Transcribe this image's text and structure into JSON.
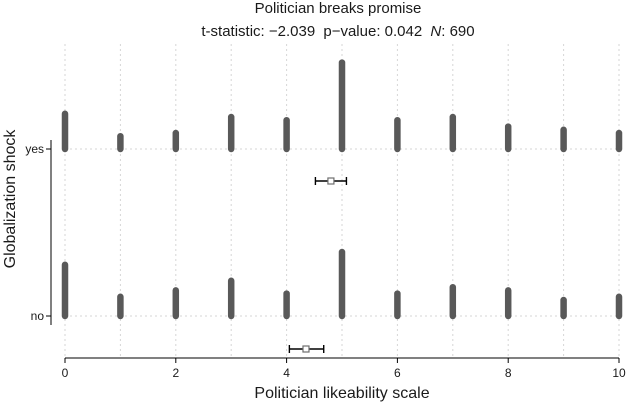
{
  "chart_data": {
    "type": "bar",
    "title": "Politician breaks promise",
    "subtitle_parts": {
      "t_label": "t-statistic:",
      "t_value": "−2.039",
      "p_label": "p−value:",
      "p_value": "0.042",
      "n_label": "N",
      "n_value": "690"
    },
    "xlabel": "Politician likeability scale",
    "ylabel": "Globalization shock",
    "xlim": [
      0,
      10
    ],
    "xticks": [
      "0",
      "2",
      "4",
      "6",
      "8",
      "10"
    ],
    "categories": [
      "yes",
      "no"
    ],
    "x": [
      0,
      1,
      2,
      3,
      4,
      5,
      6,
      7,
      8,
      9,
      10
    ],
    "series": [
      {
        "name": "yes",
        "values": [
          0.11,
          0.04,
          0.05,
          0.1,
          0.09,
          0.27,
          0.09,
          0.1,
          0.07,
          0.06,
          0.05
        ],
        "mean": 4.8,
        "ci": [
          4.52,
          5.08
        ]
      },
      {
        "name": "no",
        "values": [
          0.16,
          0.06,
          0.08,
          0.11,
          0.07,
          0.2,
          0.07,
          0.09,
          0.08,
          0.05,
          0.06
        ],
        "mean": 4.35,
        "ci": [
          4.05,
          4.67
        ]
      }
    ],
    "grid": true,
    "colors": {
      "bar": "#595959",
      "errorbar": "#000000",
      "mean_marker": "#6e6e6e"
    }
  }
}
